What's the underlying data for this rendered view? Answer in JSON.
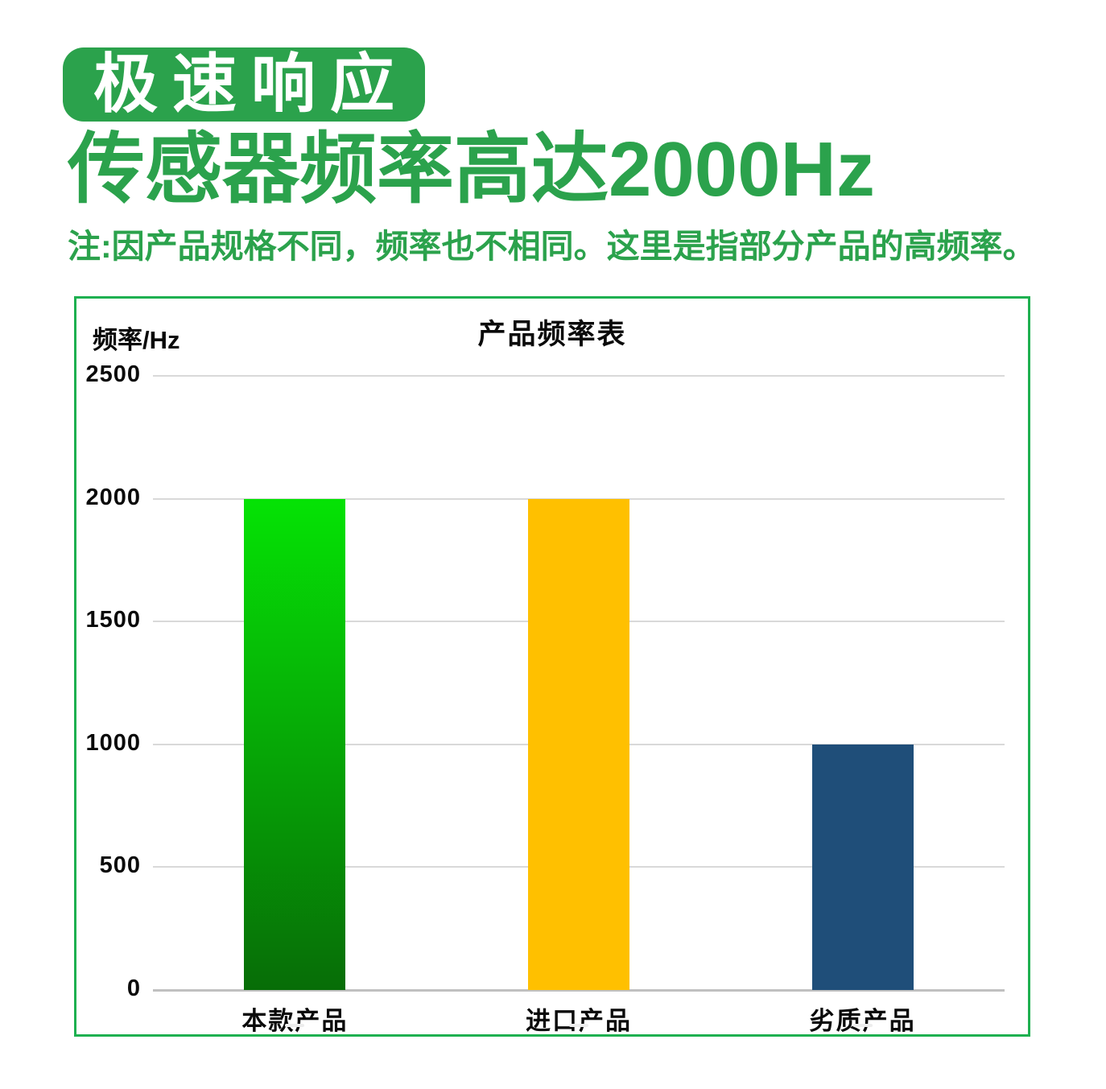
{
  "badge": {
    "label": "极速响应"
  },
  "heading": {
    "text": "传感器频率高达2000Hz"
  },
  "note": {
    "text": "注:因产品规格不同，频率也不相同。这里是指部分产品的高频率。"
  },
  "colors": {
    "accent_green": "#2ba24c",
    "chart_border": "#1eb050",
    "grid": "#d9d9d9",
    "baseline": "#c0c0c0",
    "text": "#0a0a0a",
    "badge_text": "#ffffff"
  },
  "chart_data": {
    "type": "bar",
    "title": "产品频率表",
    "ylabel": "频率/Hz",
    "xlabel": "",
    "categories": [
      "本款产品",
      "进口产品",
      "劣质产品"
    ],
    "values": [
      2000,
      2000,
      1000
    ],
    "ylim": [
      0,
      2500
    ],
    "yticks": [
      2500,
      2000,
      1500,
      1000,
      500,
      0
    ],
    "grid": true,
    "legend": false,
    "bar_fills": [
      {
        "type": "gradient",
        "from": "#05e305",
        "to": "#076d07"
      },
      {
        "type": "solid",
        "color": "#ffc000"
      },
      {
        "type": "solid",
        "color": "#1f4e79"
      }
    ]
  }
}
